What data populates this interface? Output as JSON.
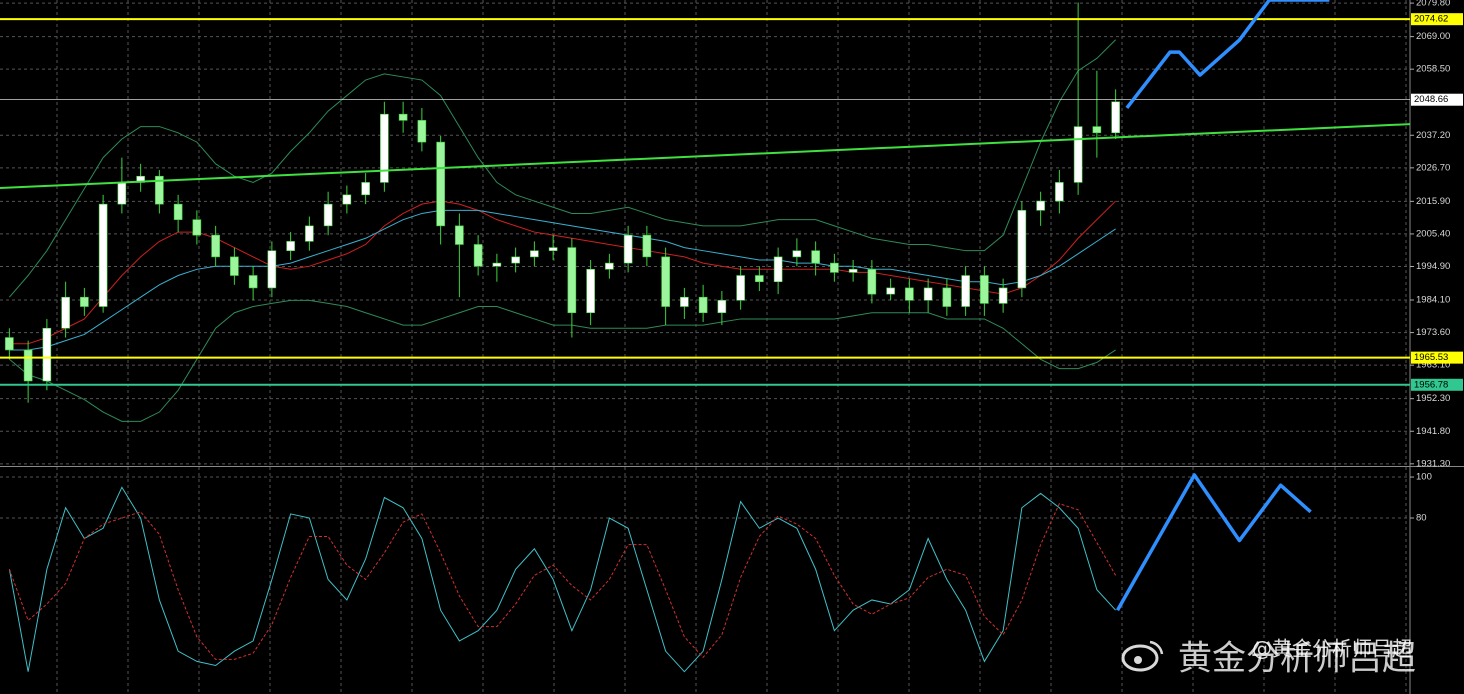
{
  "chart_data": [
    {
      "type": "candlestick",
      "xlim": [
        -0.5,
        74.7
      ],
      "ylim": [
        1930.6,
        2080.8
      ],
      "grid": true,
      "yticks": [
        {
          "value": 2079.8,
          "label": "2079.80"
        },
        {
          "value": 2069,
          "label": "2069.00"
        },
        {
          "value": 2058.5,
          "label": "2058.50"
        },
        {
          "value": 2037.2,
          "label": "2037.20"
        },
        {
          "value": 2026.7,
          "label": "2026.70"
        },
        {
          "value": 2015.9,
          "label": "2015.90"
        },
        {
          "value": 2005.4,
          "label": "2005.40"
        },
        {
          "value": 1994.9,
          "label": "1994.90"
        },
        {
          "value": 1984.1,
          "label": "1984.10"
        },
        {
          "value": 1973.6,
          "label": "1973.60"
        },
        {
          "value": 1963.1,
          "label": "1963.10"
        },
        {
          "value": 1952.3,
          "label": "1952.30"
        },
        {
          "value": 1941.8,
          "label": "1941.80"
        },
        {
          "value": 1931.3,
          "label": "1931.30"
        }
      ],
      "candles": {
        "up_color": "#ffffff",
        "down_color": "#9cf59c",
        "wick_color": "#3cd23c",
        "open": [
          1972,
          1968,
          1958,
          1975,
          1985,
          1982,
          2015,
          2022,
          2024,
          2015,
          2010,
          2005,
          1998,
          1992,
          1988,
          2000,
          2003,
          2008,
          2015,
          2018,
          2022,
          2044,
          2042,
          2035,
          2008,
          2002,
          1995,
          1996,
          1998,
          2000,
          2001,
          1980,
          1994,
          1996,
          2005,
          1998,
          1982,
          1985,
          1980,
          1984,
          1992,
          1990,
          1998,
          2000,
          1996,
          1993,
          1994,
          1986,
          1988,
          1984,
          1988,
          1982,
          1992,
          1983,
          1988,
          2013,
          2016,
          2022,
          2040,
          2038
        ],
        "high": [
          1975,
          1971,
          1978,
          1990,
          1988,
          2018,
          2030,
          2028,
          2026,
          2018,
          2013,
          2008,
          2001,
          1995,
          2003,
          2006,
          2011,
          2019,
          2021,
          2025,
          2048,
          2048,
          2046,
          2037,
          2012,
          2005,
          1999,
          2001,
          2003,
          2005,
          2004,
          1997,
          1999,
          2008,
          2008,
          2001,
          1988,
          1989,
          1987,
          1995,
          1995,
          2001,
          2004,
          2003,
          1999,
          1997,
          1997,
          1991,
          1991,
          1991,
          1991,
          1995,
          1995,
          1991,
          2016,
          2019,
          2026,
          2080,
          2058,
          2052
        ],
        "low": [
          1965,
          1951,
          1955,
          1972,
          1979,
          1980,
          2012,
          2019,
          2012,
          2006,
          2002,
          1995,
          1989,
          1984,
          1985,
          1997,
          2000,
          2005,
          2012,
          2015,
          2019,
          2038,
          2032,
          2002,
          1985,
          1992,
          1990,
          1993,
          1995,
          1997,
          1972,
          1976,
          1991,
          1993,
          1995,
          1976,
          1978,
          1977,
          1976,
          1981,
          1987,
          1986,
          1995,
          1992,
          1990,
          1990,
          1983,
          1984,
          1980,
          1980,
          1979,
          1979,
          1979,
          1980,
          1985,
          2008,
          2012,
          2018,
          2030,
          2036
        ],
        "close": [
          1968,
          1958,
          1975,
          1985,
          1982,
          2015,
          2022,
          2024,
          2015,
          2010,
          2005,
          1998,
          1992,
          1988,
          2000,
          2003,
          2008,
          2015,
          2018,
          2022,
          2044,
          2042,
          2035,
          2008,
          2002,
          1995,
          1996,
          1998,
          2000,
          2001,
          1980,
          1994,
          1996,
          2005,
          1998,
          1982,
          1985,
          1980,
          1984,
          1992,
          1990,
          1998,
          2000,
          1996,
          1993,
          1994,
          1986,
          1988,
          1984,
          1988,
          1982,
          1992,
          1983,
          1988,
          2013,
          2016,
          2022,
          2040,
          2038,
          2048
        ]
      },
      "series": [
        {
          "color": "#2e8b57",
          "values": [
            1985,
            1992,
            2000,
            2010,
            2020,
            2030,
            2036,
            2040,
            2040,
            2038,
            2035,
            2028,
            2024,
            2022,
            2025,
            2032,
            2038,
            2045,
            2050,
            2055,
            2057,
            2056,
            2055,
            2050,
            2040,
            2030,
            2022,
            2018,
            2016,
            2014,
            2012,
            2012,
            2013,
            2014,
            2012,
            2010,
            2009,
            2008,
            2008,
            2008,
            2009,
            2010,
            2010,
            2010,
            2008,
            2006,
            2004,
            2003,
            2002,
            2002,
            2001,
            2000,
            2000,
            2005,
            2020,
            2035,
            2048,
            2058,
            2062,
            2068
          ]
        },
        {
          "color": "#2e8b57",
          "values": [
            1965,
            1960,
            1958,
            1955,
            1952,
            1948,
            1945,
            1945,
            1948,
            1955,
            1965,
            1975,
            1980,
            1982,
            1983,
            1984,
            1984,
            1983,
            1982,
            1980,
            1978,
            1976,
            1976,
            1978,
            1980,
            1982,
            1982,
            1980,
            1978,
            1976,
            1976,
            1975,
            1975,
            1975,
            1975,
            1976,
            1976,
            1976,
            1977,
            1978,
            1978,
            1978,
            1978,
            1978,
            1978,
            1979,
            1980,
            1980,
            1980,
            1980,
            1978,
            1978,
            1978,
            1975,
            1970,
            1965,
            1962,
            1962,
            1964,
            1968
          ]
        },
        {
          "color": "#d02020",
          "values": [
            1970,
            1970,
            1972,
            1975,
            1978,
            1985,
            1992,
            1998,
            2003,
            2006,
            2006,
            2004,
            2001,
            1998,
            1995,
            1994,
            1995,
            1997,
            1999,
            2002,
            2008,
            2012,
            2015,
            2016,
            2015,
            2013,
            2010,
            2008,
            2006,
            2005,
            2004,
            2003,
            2002,
            2001,
            2000,
            1999,
            1998,
            1996,
            1995,
            1994,
            1994,
            1994,
            1994,
            1994,
            1994,
            1993,
            1993,
            1992,
            1991,
            1990,
            1989,
            1988,
            1987,
            1986,
            1988,
            1992,
            1997,
            2004,
            2010,
            2016
          ]
        },
        {
          "color": "#3ab0d0",
          "values": [
            1968,
            1968,
            1969,
            1971,
            1973,
            1977,
            1981,
            1985,
            1989,
            1992,
            1994,
            1995,
            1995,
            1995,
            1995,
            1996,
            1998,
            2000,
            2002,
            2004,
            2007,
            2010,
            2012,
            2013,
            2013,
            2013,
            2012,
            2011,
            2010,
            2009,
            2008,
            2007,
            2006,
            2005,
            2004,
            2003,
            2001,
            2000,
            1999,
            1998,
            1997,
            1997,
            1996,
            1996,
            1995,
            1995,
            1994,
            1994,
            1993,
            1992,
            1991,
            1990,
            1990,
            1989,
            1990,
            1992,
            1995,
            1999,
            2003,
            2007
          ]
        }
      ],
      "trendline": {
        "color": "#40e040",
        "x": [
          -0.5,
          74.7
        ],
        "values": [
          2020.2,
          2040.8
        ]
      },
      "levels": [
        {
          "value": 2074.62,
          "color": "#ffff00"
        },
        {
          "value": 2048.66,
          "color": "#ffffff"
        },
        {
          "value": 1965.53,
          "color": "#ffff00"
        },
        {
          "value": 1956.78,
          "color": "#30c890"
        }
      ],
      "forecast": {
        "color": "#2f8fff",
        "x": [
          59.6,
          61.9,
          62.4,
          63.5,
          65.6,
          67.2,
          70.4
        ],
        "values": [
          2046.0,
          2064.0,
          2064.0,
          2056.6,
          2067.9,
          2080.8,
          2080.8
        ]
      },
      "annotations": [
        "黄金分析师吕超",
        "@黄金分析师吕超"
      ]
    },
    {
      "type": "line",
      "xlim": [
        -0.5,
        74.7
      ],
      "ylim": [
        -5.9,
        104.9
      ],
      "grid": true,
      "yticks": [
        80,
        100
      ],
      "series": [
        {
          "color": "#40c0c8",
          "dashed": false,
          "values": [
            55,
            5,
            55,
            85,
            70,
            75,
            95,
            80,
            40,
            15,
            10,
            8,
            15,
            20,
            50,
            82,
            80,
            50,
            40,
            60,
            90,
            85,
            70,
            35,
            20,
            25,
            35,
            55,
            65,
            50,
            25,
            45,
            80,
            75,
            45,
            15,
            5,
            15,
            50,
            88,
            75,
            80,
            75,
            55,
            25,
            35,
            40,
            38,
            45,
            70,
            50,
            35,
            10,
            25,
            85,
            92,
            85,
            75,
            45,
            35
          ]
        },
        {
          "color": "#d03030",
          "dashed": true,
          "values": [
            55,
            30,
            38,
            48,
            70,
            77,
            80,
            83,
            72,
            45,
            22,
            11,
            11,
            14,
            28,
            51,
            71,
            71,
            57,
            50,
            63,
            78,
            82,
            63,
            42,
            27,
            27,
            38,
            52,
            57,
            47,
            40,
            50,
            67,
            67,
            45,
            22,
            12,
            23,
            51,
            71,
            81,
            77,
            70,
            52,
            38,
            33,
            38,
            41,
            51,
            55,
            52,
            32,
            23,
            40,
            67,
            87,
            84,
            68,
            52
          ]
        }
      ],
      "forecast": {
        "color": "#2f8fff",
        "x": [
          59.1,
          63.2,
          65.6,
          67.8,
          69.4
        ],
        "values": [
          35,
          101,
          69,
          96,
          83
        ]
      }
    }
  ]
}
